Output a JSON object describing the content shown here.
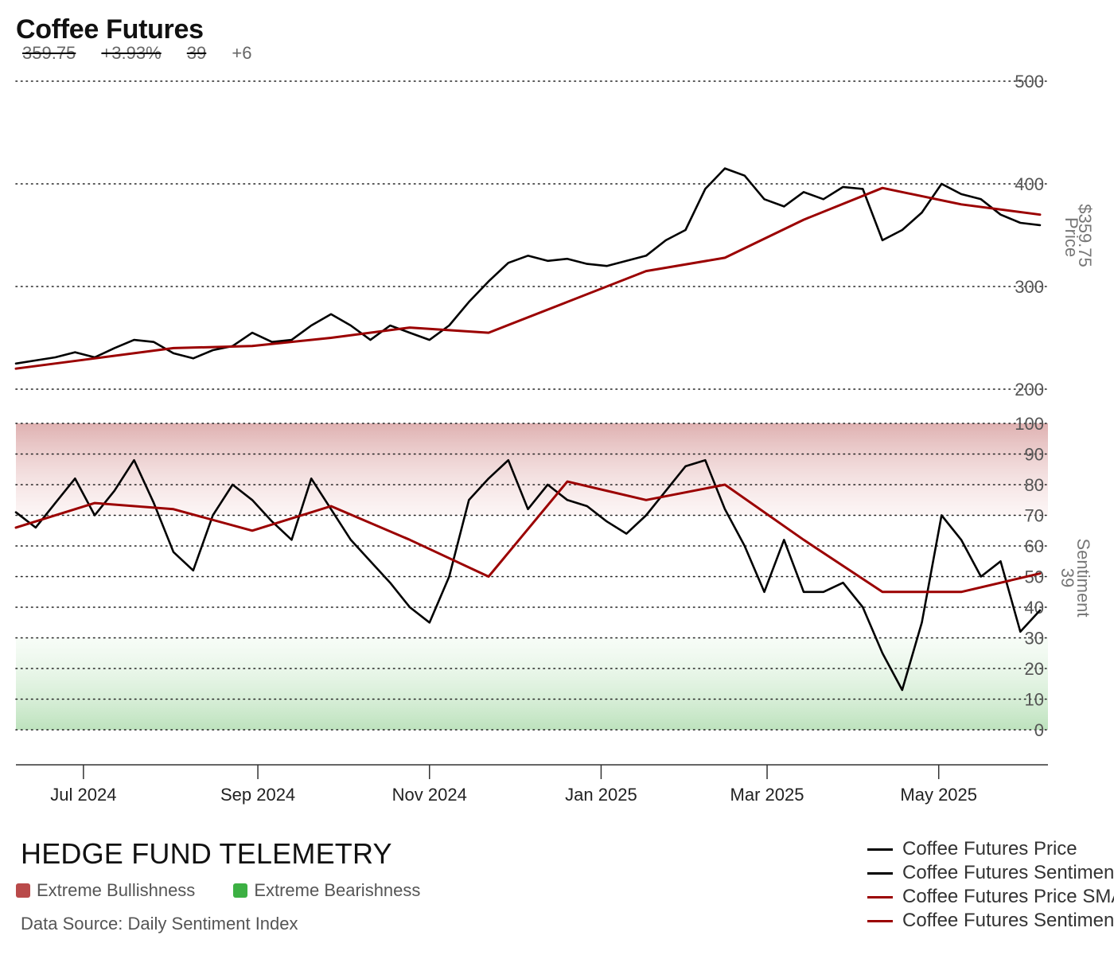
{
  "header": {
    "title": "Coffee Futures",
    "price": "359.75",
    "change_pct": "+3.93%",
    "sentiment": "39",
    "sentiment_change": "+6"
  },
  "footer": {
    "brand": "HEDGE FUND TELEMETRY",
    "zones": [
      {
        "label": "Extreme Bullishness",
        "color": "#b94a4a"
      },
      {
        "label": "Extreme Bearishness",
        "color": "#3cb043"
      }
    ],
    "source": "Data Source: Daily Sentiment Index"
  },
  "legend": [
    {
      "label": "Coffee Futures Price",
      "color": "#000000"
    },
    {
      "label": "Coffee Futures Sentiment",
      "color": "#000000"
    },
    {
      "label": "Coffee Futures Price SMA",
      "color": "#9b0000"
    },
    {
      "label": "Coffee Futures Sentiment SMA",
      "color": "#9b0000"
    }
  ],
  "chart_data": {
    "type": "line",
    "x_axis": {
      "ticks": [
        "Jul 2024",
        "Sep 2024",
        "Nov 2024",
        "Jan 2025",
        "Mar 2025",
        "May 2025"
      ],
      "range": [
        "2024-06-07",
        "2025-06-06"
      ]
    },
    "panels": [
      {
        "name": "price",
        "ylabel": "Price",
        "last_value_label": "$359.75",
        "ylim": [
          200,
          500
        ],
        "yticks": [
          200,
          300,
          400,
          500
        ],
        "grid": true,
        "series": [
          {
            "name": "Coffee Futures Price",
            "color": "#000000",
            "points": [
              [
                "2024-06-07",
                225
              ],
              [
                "2024-06-14",
                228
              ],
              [
                "2024-06-21",
                231
              ],
              [
                "2024-06-28",
                236
              ],
              [
                "2024-07-05",
                231
              ],
              [
                "2024-07-12",
                240
              ],
              [
                "2024-07-19",
                248
              ],
              [
                "2024-07-26",
                246
              ],
              [
                "2024-08-02",
                235
              ],
              [
                "2024-08-09",
                230
              ],
              [
                "2024-08-16",
                238
              ],
              [
                "2024-08-23",
                242
              ],
              [
                "2024-08-30",
                255
              ],
              [
                "2024-09-06",
                246
              ],
              [
                "2024-09-13",
                248
              ],
              [
                "2024-09-20",
                262
              ],
              [
                "2024-09-27",
                273
              ],
              [
                "2024-10-04",
                262
              ],
              [
                "2024-10-11",
                248
              ],
              [
                "2024-10-18",
                262
              ],
              [
                "2024-10-25",
                255
              ],
              [
                "2024-11-01",
                248
              ],
              [
                "2024-11-08",
                262
              ],
              [
                "2024-11-15",
                285
              ],
              [
                "2024-11-22",
                305
              ],
              [
                "2024-11-29",
                323
              ],
              [
                "2024-12-06",
                330
              ],
              [
                "2024-12-13",
                325
              ],
              [
                "2024-12-20",
                327
              ],
              [
                "2024-12-27",
                322
              ],
              [
                "2025-01-03",
                320
              ],
              [
                "2025-01-10",
                325
              ],
              [
                "2025-01-17",
                330
              ],
              [
                "2025-01-24",
                345
              ],
              [
                "2025-01-31",
                355
              ],
              [
                "2025-02-07",
                395
              ],
              [
                "2025-02-14",
                415
              ],
              [
                "2025-02-21",
                408
              ],
              [
                "2025-02-28",
                385
              ],
              [
                "2025-03-07",
                378
              ],
              [
                "2025-03-14",
                392
              ],
              [
                "2025-03-21",
                385
              ],
              [
                "2025-03-28",
                397
              ],
              [
                "2025-04-04",
                395
              ],
              [
                "2025-04-11",
                345
              ],
              [
                "2025-04-18",
                355
              ],
              [
                "2025-04-25",
                372
              ],
              [
                "2025-05-02",
                400
              ],
              [
                "2025-05-09",
                390
              ],
              [
                "2025-05-16",
                385
              ],
              [
                "2025-05-23",
                370
              ],
              [
                "2025-05-30",
                362
              ],
              [
                "2025-06-06",
                359.75
              ]
            ]
          },
          {
            "name": "Coffee Futures Price SMA",
            "color": "#9b0000",
            "points": [
              [
                "2024-06-07",
                220
              ],
              [
                "2024-07-05",
                230
              ],
              [
                "2024-08-02",
                240
              ],
              [
                "2024-08-30",
                242
              ],
              [
                "2024-09-27",
                250
              ],
              [
                "2024-10-25",
                260
              ],
              [
                "2024-11-22",
                255
              ],
              [
                "2024-12-20",
                285
              ],
              [
                "2025-01-17",
                315
              ],
              [
                "2025-02-14",
                328
              ],
              [
                "2025-03-14",
                365
              ],
              [
                "2025-04-11",
                396
              ],
              [
                "2025-05-09",
                380
              ],
              [
                "2025-06-06",
                370
              ]
            ]
          }
        ]
      },
      {
        "name": "sentiment",
        "ylabel": "Sentiment",
        "last_value_label": "39",
        "ylim": [
          0,
          100
        ],
        "yticks": [
          0,
          10,
          20,
          30,
          40,
          50,
          60,
          70,
          80,
          90,
          100
        ],
        "grid": true,
        "zones": [
          {
            "name": "Extreme Bullishness",
            "range": [
              70,
              100
            ]
          },
          {
            "name": "Extreme Bearishness",
            "range": [
              0,
              30
            ]
          }
        ],
        "series": [
          {
            "name": "Coffee Futures Sentiment",
            "color": "#000000",
            "points": [
              [
                "2024-06-07",
                71
              ],
              [
                "2024-06-14",
                66
              ],
              [
                "2024-06-21",
                74
              ],
              [
                "2024-06-28",
                82
              ],
              [
                "2024-07-05",
                70
              ],
              [
                "2024-07-12",
                78
              ],
              [
                "2024-07-19",
                88
              ],
              [
                "2024-07-26",
                74
              ],
              [
                "2024-08-02",
                58
              ],
              [
                "2024-08-09",
                52
              ],
              [
                "2024-08-16",
                70
              ],
              [
                "2024-08-23",
                80
              ],
              [
                "2024-08-30",
                75
              ],
              [
                "2024-09-06",
                68
              ],
              [
                "2024-09-13",
                62
              ],
              [
                "2024-09-20",
                82
              ],
              [
                "2024-09-27",
                72
              ],
              [
                "2024-10-04",
                62
              ],
              [
                "2024-10-11",
                55
              ],
              [
                "2024-10-18",
                48
              ],
              [
                "2024-10-25",
                40
              ],
              [
                "2024-11-01",
                35
              ],
              [
                "2024-11-08",
                50
              ],
              [
                "2024-11-15",
                75
              ],
              [
                "2024-11-22",
                82
              ],
              [
                "2024-11-29",
                88
              ],
              [
                "2024-12-06",
                72
              ],
              [
                "2024-12-13",
                80
              ],
              [
                "2024-12-20",
                75
              ],
              [
                "2024-12-27",
                73
              ],
              [
                "2025-01-03",
                68
              ],
              [
                "2025-01-10",
                64
              ],
              [
                "2025-01-17",
                70
              ],
              [
                "2025-01-24",
                78
              ],
              [
                "2025-01-31",
                86
              ],
              [
                "2025-02-07",
                88
              ],
              [
                "2025-02-14",
                72
              ],
              [
                "2025-02-21",
                60
              ],
              [
                "2025-02-28",
                45
              ],
              [
                "2025-03-07",
                62
              ],
              [
                "2025-03-14",
                45
              ],
              [
                "2025-03-21",
                45
              ],
              [
                "2025-03-28",
                48
              ],
              [
                "2025-04-04",
                40
              ],
              [
                "2025-04-11",
                25
              ],
              [
                "2025-04-18",
                13
              ],
              [
                "2025-04-25",
                35
              ],
              [
                "2025-05-02",
                70
              ],
              [
                "2025-05-09",
                62
              ],
              [
                "2025-05-16",
                50
              ],
              [
                "2025-05-23",
                55
              ],
              [
                "2025-05-30",
                32
              ],
              [
                "2025-06-06",
                39
              ]
            ]
          },
          {
            "name": "Coffee Futures Sentiment SMA",
            "color": "#9b0000",
            "points": [
              [
                "2024-06-07",
                66
              ],
              [
                "2024-07-05",
                74
              ],
              [
                "2024-08-02",
                72
              ],
              [
                "2024-08-30",
                65
              ],
              [
                "2024-09-27",
                73
              ],
              [
                "2024-10-25",
                62
              ],
              [
                "2024-11-22",
                50
              ],
              [
                "2024-12-20",
                81
              ],
              [
                "2025-01-17",
                75
              ],
              [
                "2025-02-14",
                80
              ],
              [
                "2025-03-14",
                62
              ],
              [
                "2025-04-11",
                45
              ],
              [
                "2025-05-09",
                45
              ],
              [
                "2025-06-06",
                51
              ]
            ]
          }
        ]
      }
    ]
  }
}
